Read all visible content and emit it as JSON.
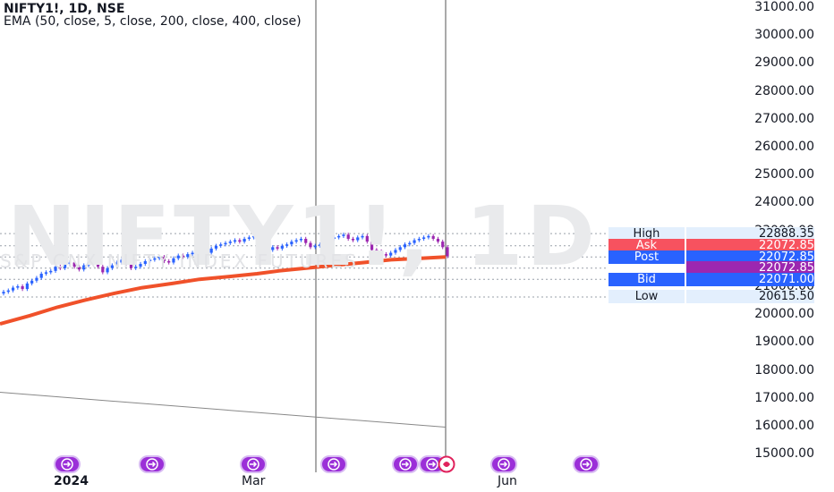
{
  "header": {
    "symbol_line": "NIFTY1!, 1D, NSE",
    "indicator_line": "EMA (50, close, 5, close, 200, close, 400, close)"
  },
  "watermark": {
    "symbol": "NIFTY1!, 1D",
    "description": "S&P CNX NIFTY INDEX FUTURES"
  },
  "colors": {
    "ema": "#f0512a",
    "candle_up": "#2962ff",
    "candle_down": "#9c27b0",
    "ask": "#f7525f",
    "post": "#2962ff",
    "price": "#9c27b0",
    "bid": "#2962ff",
    "hl_bg": "#e3effd",
    "event": "#9b2fd8"
  },
  "price_tags": [
    {
      "label": "High",
      "value": "22888.35",
      "price": 22888.35,
      "style": "light"
    },
    {
      "label": "Ask",
      "value": "22072.85",
      "price": 22450,
      "style": "ask"
    },
    {
      "label": "Post",
      "value": "22072.85",
      "price": 22050,
      "style": "post"
    },
    {
      "label": "",
      "value": "22072.85",
      "price": 21650,
      "style": "price"
    },
    {
      "label": "Bid",
      "value": "22071.00",
      "price": 21250,
      "style": "bid"
    },
    {
      "label": "Low",
      "value": "20615.50",
      "price": 20615.5,
      "style": "light"
    }
  ],
  "events": {
    "icon": "event-arrow-icon",
    "count": 9
  },
  "chart_data": {
    "type": "candlestick",
    "title": "NIFTY1!, 1D, NSE",
    "y_axis": {
      "ticks": [
        "31000.00",
        "30000.00",
        "29000.00",
        "28000.00",
        "27000.00",
        "26000.00",
        "25000.00",
        "24000.00",
        "23000.00",
        "22000.00",
        "21000.00",
        "20000.00",
        "19000.00",
        "18000.00",
        "17000.00",
        "16000.00",
        "15000.00"
      ],
      "range": [
        14700,
        31300
      ]
    },
    "x_axis": {
      "ticks": [
        "2024",
        "Mar",
        "Jun"
      ]
    },
    "series": [
      {
        "name": "EMA (50, close, 5, close, 200, close, 400, close)",
        "x": [
          "2023-11-20",
          "2023-12-01",
          "2023-12-11",
          "2023-12-21",
          "2024-01-01",
          "2024-01-11",
          "2024-01-22",
          "2024-02-01",
          "2024-02-12",
          "2024-02-22",
          "2024-03-01",
          "2024-03-11",
          "2024-03-21",
          "2024-04-01",
          "2024-04-11",
          "2024-04-22",
          "2024-05-01"
        ],
        "values": [
          19650,
          19950,
          20250,
          20500,
          20750,
          20950,
          21100,
          21250,
          21350,
          21450,
          21550,
          21650,
          21750,
          21850,
          21950,
          22000,
          22050
        ]
      },
      {
        "name": "Trend line",
        "x": [
          "2023-11-20",
          "2024-05-01"
        ],
        "values": [
          17200,
          15950
        ]
      }
    ],
    "close": [
      20800,
      20850,
      20950,
      21000,
      20900,
      21100,
      21200,
      21300,
      21450,
      21500,
      21550,
      21700,
      21650,
      21800,
      21850,
      21700,
      21600,
      21750,
      21850,
      21900,
      21700,
      21500,
      21650,
      21750,
      21850,
      21950,
      21800,
      21650,
      21700,
      21800,
      21900,
      21950,
      22000,
      22050,
      21900,
      21850,
      22000,
      22100,
      22050,
      22150,
      22200,
      22250,
      22300,
      22200,
      22350,
      22450,
      22500,
      22550,
      22600,
      22650,
      22600,
      22700,
      22750,
      22800,
      22750,
      22500,
      22300,
      22400,
      22350,
      22450,
      22500,
      22600,
      22650,
      22700,
      22550,
      22400,
      22450,
      22500,
      22600,
      22700,
      22750,
      22800,
      22850,
      22700,
      22650,
      22750,
      22800,
      22600,
      22300,
      22250,
      22150,
      22100,
      22200,
      22300,
      22400,
      22500,
      22550,
      22650,
      22700,
      22750,
      22800,
      22700,
      22600,
      22400,
      22072.85
    ]
  }
}
